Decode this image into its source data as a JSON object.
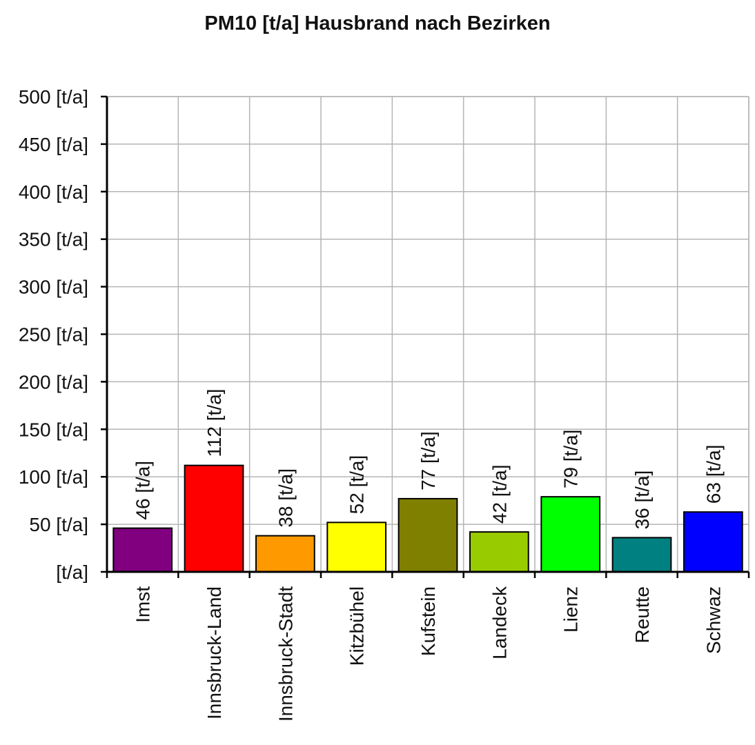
{
  "chart_data": {
    "type": "bar",
    "title": "PM10 [t/a] Hausbrand nach Bezirken",
    "xlabel": "",
    "ylabel": "",
    "unit": "[t/a]",
    "ylim": [
      0,
      500
    ],
    "y_ticks": [
      "[t/a]",
      "50 [t/a]",
      "100 [t/a]",
      "150 [t/a]",
      "200 [t/a]",
      "250 [t/a]",
      "300 [t/a]",
      "350 [t/a]",
      "400 [t/a]",
      "450 [t/a]",
      "500 [t/a]"
    ],
    "y_tick_values": [
      0,
      50,
      100,
      150,
      200,
      250,
      300,
      350,
      400,
      450,
      500
    ],
    "categories": [
      "Imst",
      "Innsbruck-Land",
      "Innsbruck-Stadt",
      "Kitzbühel",
      "Kufstein",
      "Landeck",
      "Lienz",
      "Reutte",
      "Schwaz"
    ],
    "values": [
      46,
      112,
      38,
      52,
      77,
      42,
      79,
      36,
      63
    ],
    "data_labels": [
      "46 [t/a]",
      "112 [t/a]",
      "38 [t/a]",
      "52 [t/a]",
      "77 [t/a]",
      "42 [t/a]",
      "79 [t/a]",
      "36 [t/a]",
      "63 [t/a]"
    ],
    "colors": [
      "#800080",
      "#ff0000",
      "#ff9900",
      "#ffff00",
      "#808000",
      "#99cc00",
      "#00ff00",
      "#008080",
      "#0000ff"
    ],
    "grid": true,
    "legend": "none"
  }
}
